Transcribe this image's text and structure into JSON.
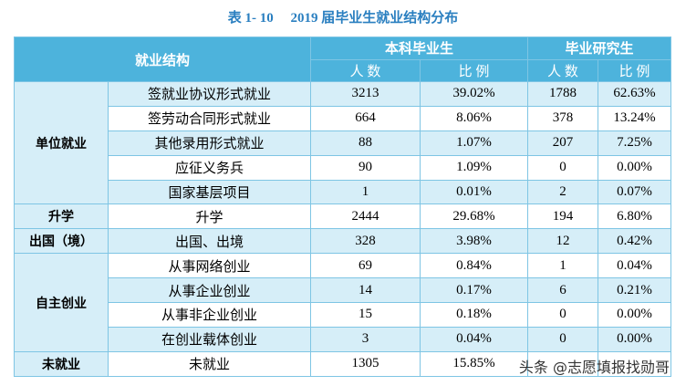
{
  "header": {
    "title": "表 1- 10　 2019 届毕业生就业结构分布"
  },
  "table": {
    "structure_label": "就业结构",
    "groups_header": [
      "本科毕业生",
      "毕业研究生"
    ],
    "sub_header": [
      "人 数",
      "比 例",
      "人 数",
      "比 例"
    ],
    "groups": [
      {
        "label": "单位就业",
        "rows": [
          [
            "签就业协议形式就业",
            "3213",
            "39.02%",
            "1788",
            "62.63%"
          ],
          [
            "签劳动合同形式就业",
            "664",
            "8.06%",
            "378",
            "13.24%"
          ],
          [
            "其他录用形式就业",
            "88",
            "1.07%",
            "207",
            "7.25%"
          ],
          [
            "应征义务兵",
            "90",
            "1.09%",
            "0",
            "0.00%"
          ],
          [
            "国家基层项目",
            "1",
            "0.01%",
            "2",
            "0.07%"
          ]
        ]
      },
      {
        "label": "升学",
        "rows": [
          [
            "升学",
            "2444",
            "29.68%",
            "194",
            "6.80%"
          ]
        ]
      },
      {
        "label": "出国（境）",
        "rows": [
          [
            "出国、出境",
            "328",
            "3.98%",
            "12",
            "0.42%"
          ]
        ]
      },
      {
        "label": "自主创业",
        "rows": [
          [
            "从事网络创业",
            "69",
            "0.84%",
            "1",
            "0.04%"
          ],
          [
            "从事企业创业",
            "14",
            "0.17%",
            "6",
            "0.21%"
          ],
          [
            "从事非企业创业",
            "15",
            "0.18%",
            "0",
            "0.00%"
          ],
          [
            "在创业载体创业",
            "3",
            "0.04%",
            "0",
            "0.00%"
          ]
        ]
      },
      {
        "label": "未就业",
        "rows": [
          [
            "未就业",
            "1305",
            "15.85%",
            "",
            ""
          ]
        ]
      }
    ]
  },
  "watermark": "头条 @志愿填报找勋哥"
}
